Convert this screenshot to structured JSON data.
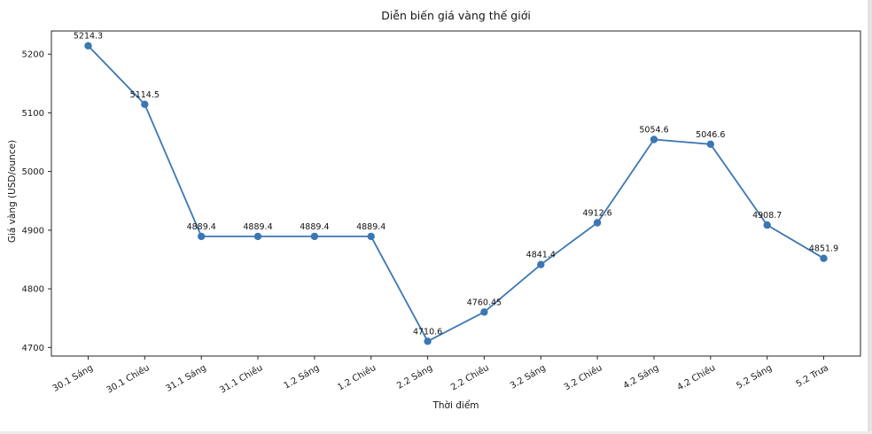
{
  "chart_data": {
    "type": "line",
    "title": "Diễn biến giá vàng thế giới",
    "xlabel": "Thời điểm",
    "ylabel": "Giá vàng (USD/ounce)",
    "categories": [
      "30.1 Sáng",
      "30.1 Chiều",
      "31.1 Sáng",
      "31.1 Chiều",
      "1.2 Sáng",
      "1.2 Chiều",
      "2.2 Sáng",
      "2.2 Chiều",
      "3.2 Sáng",
      "3.2 Chiều",
      "4.2 Sáng",
      "4.2 Chiều",
      "5.2 Sáng",
      "5.2 Trưa"
    ],
    "values": [
      5214.3,
      5114.5,
      4889.4,
      4889.4,
      4889.4,
      4889.4,
      4710.6,
      4760.45,
      4841.4,
      4912.6,
      5054.6,
      5046.6,
      4908.7,
      4851.9
    ],
    "point_labels": [
      "5214.3",
      "5114.5",
      "4889.4",
      "4889.4",
      "4889.4",
      "4889.4",
      "4710.6",
      "4760.45",
      "4841.4",
      "4912.6",
      "5054.6",
      "5046.6",
      "4908.7",
      "4851.9"
    ],
    "yticks": [
      4700,
      4800,
      4900,
      5000,
      5100,
      5200
    ],
    "ylim": [
      4685.4,
      5239.5
    ],
    "grid": false,
    "legend": "none",
    "line_color": "#3b77b4",
    "marker": "circle",
    "x_tick_rotation_deg": 30
  }
}
